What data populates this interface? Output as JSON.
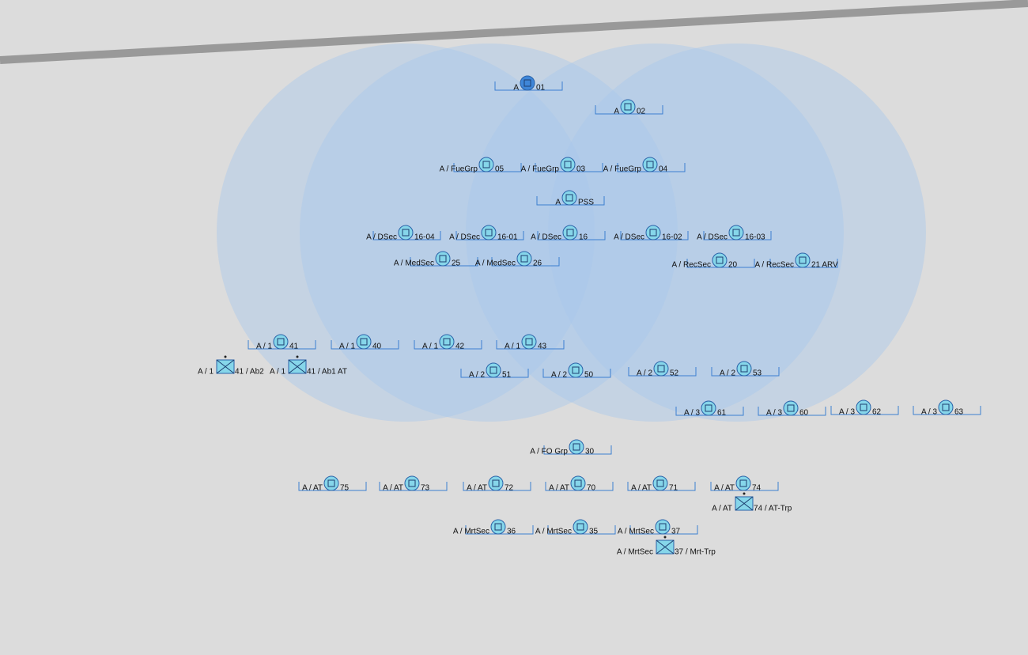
{
  "units": [
    {
      "prefix": "A",
      "label": "01"
    },
    {
      "prefix": "A",
      "label": "02"
    },
    {
      "prefix": "A / FueGrp",
      "label": "05"
    },
    {
      "prefix": "A / FueGrp",
      "label": "03"
    },
    {
      "prefix": "A / FueGrp",
      "label": "04"
    },
    {
      "prefix": "A",
      "label": "PSS"
    },
    {
      "prefix": "A / DSec",
      "label": "16-04"
    },
    {
      "prefix": "A / DSec",
      "label": "16-01"
    },
    {
      "prefix": "A / DSec",
      "label": "16"
    },
    {
      "prefix": "A / DSec",
      "label": "16-02"
    },
    {
      "prefix": "A / DSec",
      "label": "16-03"
    },
    {
      "prefix": "A / MedSec",
      "label": "25"
    },
    {
      "prefix": "A / MedSec",
      "label": "26"
    },
    {
      "prefix": "A / RecSec",
      "label": "20"
    },
    {
      "prefix": "A / RecSec",
      "label": "21 ARV"
    },
    {
      "prefix": "A / 1",
      "label": "41"
    },
    {
      "prefix": "A / 1",
      "label": "40"
    },
    {
      "prefix": "A / 1",
      "label": "42"
    },
    {
      "prefix": "A / 1",
      "label": "43"
    },
    {
      "prefix": "A / 1",
      "label": "41 / Ab2"
    },
    {
      "prefix": "A / 1",
      "label": "41 / Ab1 AT"
    },
    {
      "prefix": "A / 2",
      "label": "51"
    },
    {
      "prefix": "A / 2",
      "label": "50"
    },
    {
      "prefix": "A / 2",
      "label": "52"
    },
    {
      "prefix": "A / 2",
      "label": "53"
    },
    {
      "prefix": "A / 3",
      "label": "61"
    },
    {
      "prefix": "A / 3",
      "label": "60"
    },
    {
      "prefix": "A / 3",
      "label": "62"
    },
    {
      "prefix": "A / 3",
      "label": "63"
    },
    {
      "prefix": "A / FO Grp",
      "label": "30"
    },
    {
      "prefix": "A / AT",
      "label": "75"
    },
    {
      "prefix": "A / AT",
      "label": "73"
    },
    {
      "prefix": "A / AT",
      "label": "72"
    },
    {
      "prefix": "A / AT",
      "label": "70"
    },
    {
      "prefix": "A / AT",
      "label": "71"
    },
    {
      "prefix": "A / AT",
      "label": "74"
    },
    {
      "prefix": "A / AT",
      "label": "74 / AT-Trp"
    },
    {
      "prefix": "A / MrtSec",
      "label": "36"
    },
    {
      "prefix": "A / MrtSec",
      "label": "35"
    },
    {
      "prefix": "A / MrtSec",
      "label": "37"
    },
    {
      "prefix": "A / MrtSec",
      "label": "37 / Mrt-Trp"
    }
  ]
}
